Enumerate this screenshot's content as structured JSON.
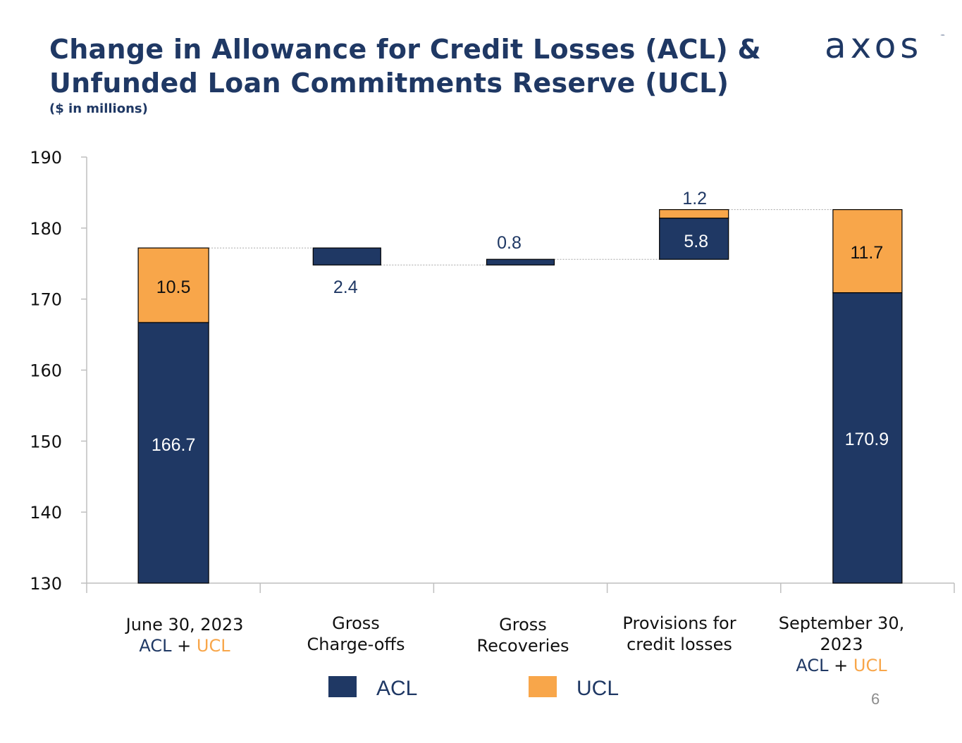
{
  "title_line1": "Change in Allowance for Credit Losses (ACL) &",
  "title_line2": "Unfunded Loan Commitments Reserve (UCL)",
  "subtitle": "($ in millions)",
  "logo_text": "axos",
  "page_number": "6",
  "colors": {
    "acl": "#1f3864",
    "ucl": "#f8a64a",
    "title": "#1f3864"
  },
  "categories": [
    {
      "line1": "June 30, 2023",
      "line2": "",
      "acl_label": "ACL",
      "plus": " + ",
      "ucl_label": "UCL"
    },
    {
      "line1": "Gross",
      "line2": "Charge-offs"
    },
    {
      "line1": "Gross",
      "line2": "Recoveries"
    },
    {
      "line1": "Provisions for",
      "line2": "credit losses"
    },
    {
      "line1": "September 30,",
      "line2": "2023",
      "acl_label": "ACL",
      "plus": " + ",
      "ucl_label": "UCL"
    }
  ],
  "legend": {
    "acl": "ACL",
    "ucl": "UCL"
  },
  "chart_data": {
    "type": "bar",
    "subtype": "waterfall",
    "title": "Change in Allowance for Credit Losses (ACL) & Unfunded Loan Commitments Reserve (UCL)",
    "ylabel": "($ in millions)",
    "ylim": [
      130,
      190
    ],
    "yticks": [
      130,
      140,
      150,
      160,
      170,
      180,
      190
    ],
    "categories": [
      "June 30, 2023 ACL + UCL",
      "Gross Charge-offs",
      "Gross Recoveries",
      "Provisions for credit losses",
      "September 30, 2023 ACL + UCL"
    ],
    "bars": [
      {
        "category": 0,
        "segments": [
          {
            "series": "ACL",
            "from": 130,
            "to": 166.7,
            "label": "166.7"
          },
          {
            "series": "UCL",
            "from": 166.7,
            "to": 177.2,
            "label": "10.5"
          }
        ]
      },
      {
        "category": 1,
        "segments": [
          {
            "series": "ACL",
            "from": 174.8,
            "to": 177.2,
            "label": "2.4"
          }
        ]
      },
      {
        "category": 2,
        "segments": [
          {
            "series": "ACL",
            "from": 174.8,
            "to": 175.6,
            "label": "0.8"
          }
        ]
      },
      {
        "category": 3,
        "segments": [
          {
            "series": "ACL",
            "from": 175.6,
            "to": 181.4,
            "label": "5.8"
          },
          {
            "series": "UCL",
            "from": 181.4,
            "to": 182.6,
            "label": "1.2"
          }
        ]
      },
      {
        "category": 4,
        "segments": [
          {
            "series": "ACL",
            "from": 130,
            "to": 170.9,
            "label": "170.9"
          },
          {
            "series": "UCL",
            "from": 170.9,
            "to": 182.6,
            "label": "11.7"
          }
        ]
      }
    ],
    "connectors": [
      177.2,
      174.8,
      175.6,
      182.6
    ],
    "legend": [
      "ACL",
      "UCL"
    ]
  }
}
